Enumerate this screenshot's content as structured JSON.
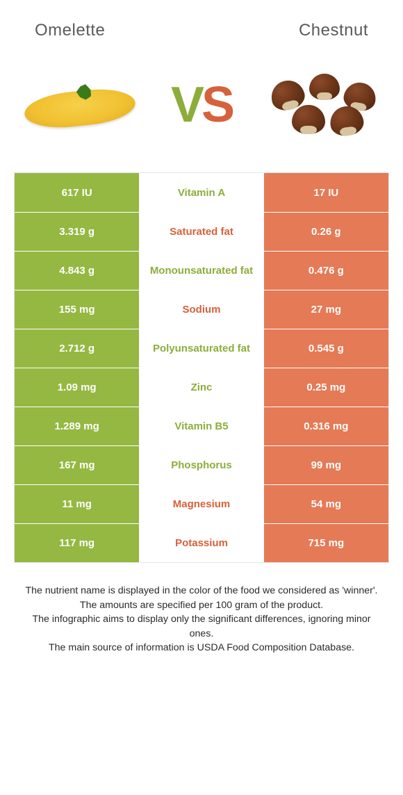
{
  "header": {
    "left_title": "Omelette",
    "right_title": "Chestnut"
  },
  "vs": {
    "v": "V",
    "s": "S"
  },
  "colors": {
    "left_bg": "#95b842",
    "right_bg": "#e57a56",
    "mid_green": "#8dad3a",
    "mid_orange": "#d6613b",
    "cell_text": "#ffffff",
    "footer_text": "#2a2a2a"
  },
  "rows": [
    {
      "left": "617 IU",
      "label": "Vitamin A",
      "winner": "left",
      "right": "17 IU"
    },
    {
      "left": "3.319 g",
      "label": "Saturated fat",
      "winner": "right",
      "right": "0.26 g"
    },
    {
      "left": "4.843 g",
      "label": "Monounsaturated fat",
      "winner": "left",
      "right": "0.476 g"
    },
    {
      "left": "155 mg",
      "label": "Sodium",
      "winner": "right",
      "right": "27 mg"
    },
    {
      "left": "2.712 g",
      "label": "Polyunsaturated fat",
      "winner": "left",
      "right": "0.545 g"
    },
    {
      "left": "1.09 mg",
      "label": "Zinc",
      "winner": "left",
      "right": "0.25 mg"
    },
    {
      "left": "1.289 mg",
      "label": "Vitamin B5",
      "winner": "left",
      "right": "0.316 mg"
    },
    {
      "left": "167 mg",
      "label": "Phosphorus",
      "winner": "left",
      "right": "99 mg"
    },
    {
      "left": "11 mg",
      "label": "Magnesium",
      "winner": "right",
      "right": "54 mg"
    },
    {
      "left": "117 mg",
      "label": "Potassium",
      "winner": "right",
      "right": "715 mg"
    }
  ],
  "footer": {
    "line1": "The nutrient name is displayed in the color of the food we considered as 'winner'.",
    "line2": "The amounts are specified per 100 gram of the product.",
    "line3": "The infographic aims to display only the significant differences, ignoring minor ones.",
    "line4": "The main source of information is USDA Food Composition Database."
  }
}
